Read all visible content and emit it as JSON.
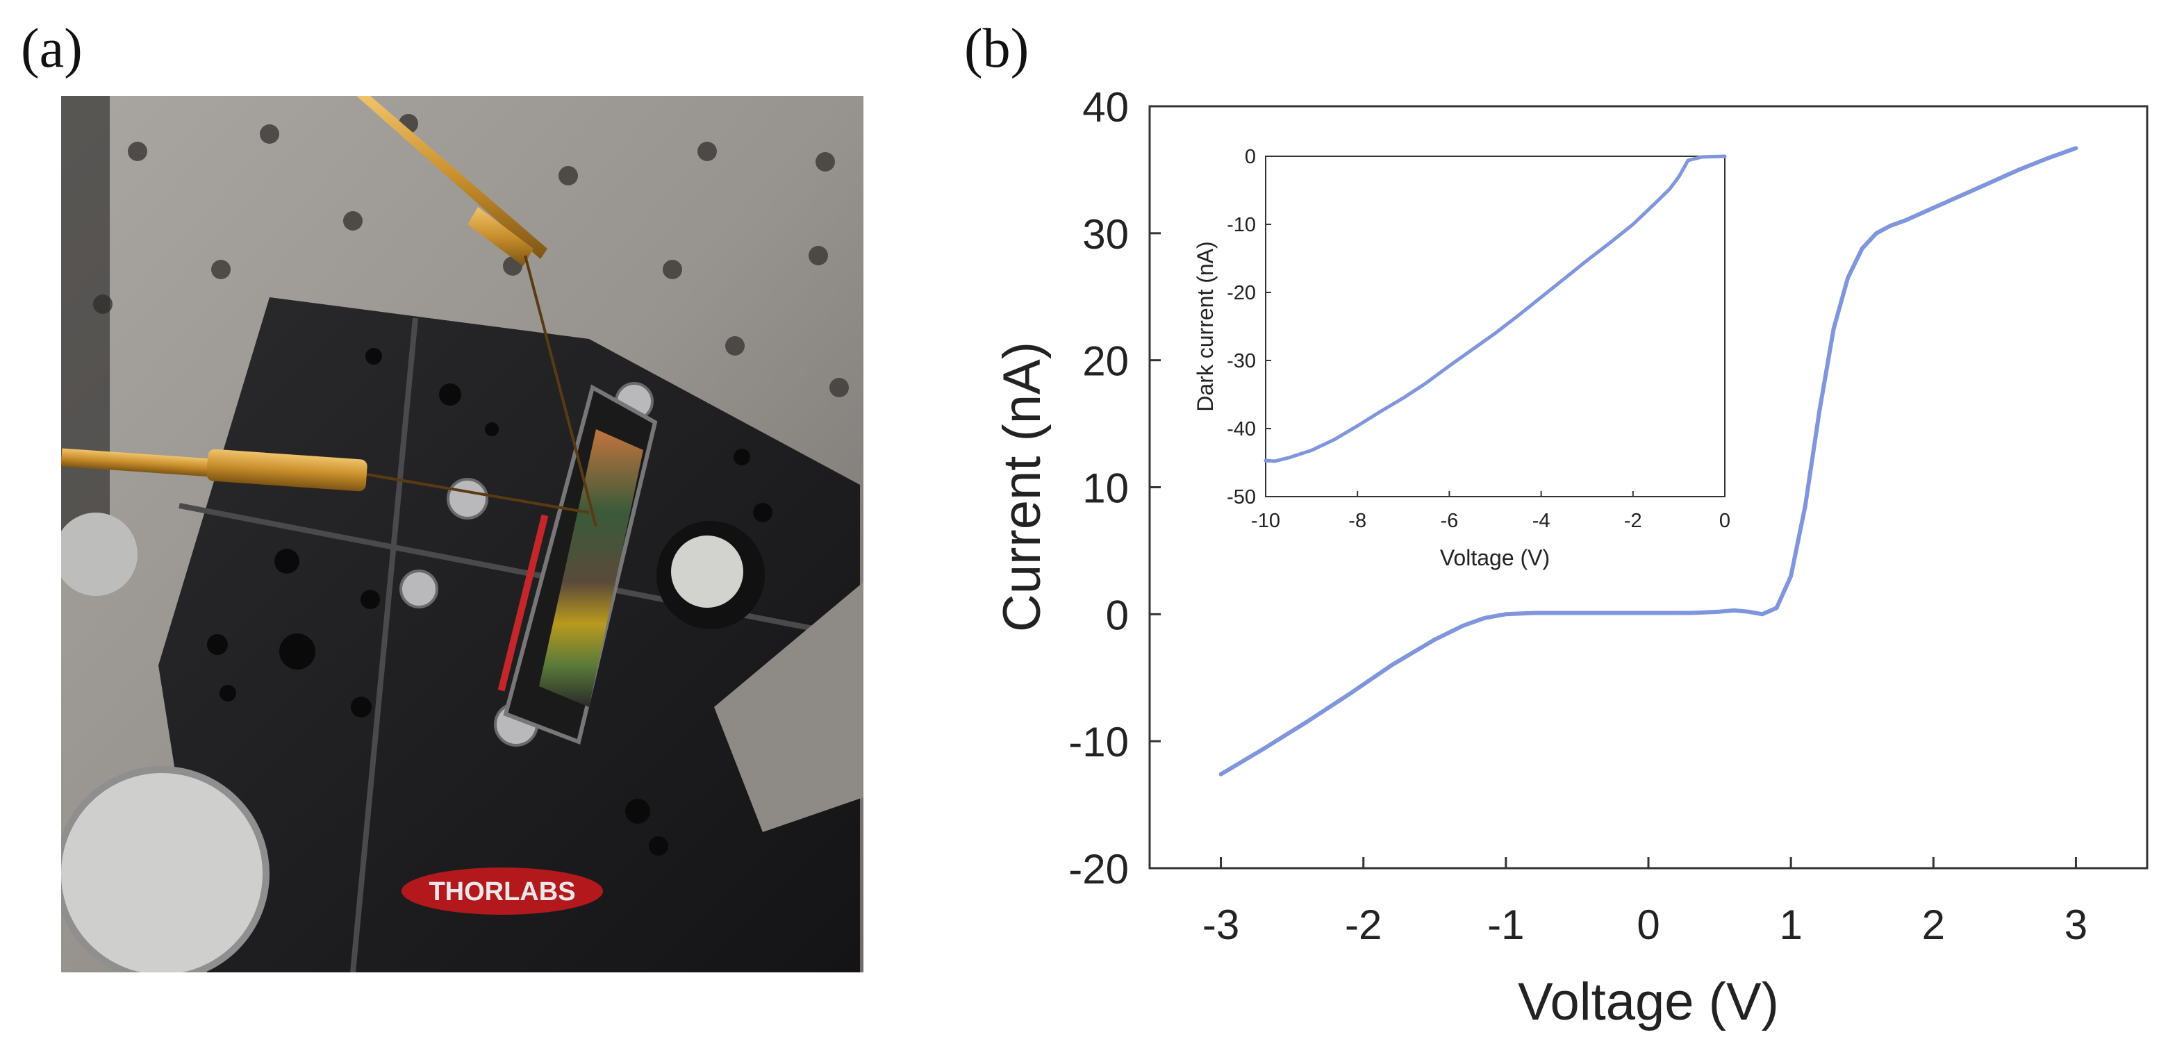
{
  "panels": {
    "a": "(a)",
    "b": "(b)"
  },
  "photo": {
    "brand_text": "THORLABS"
  },
  "colors": {
    "curve": "#7f95dd",
    "axes": "#333333",
    "background": "#ffffff"
  },
  "chart_data": [
    {
      "type": "line",
      "title": "",
      "xlabel": "Voltage (V)",
      "ylabel": "Current (nA)",
      "xlim": [
        -3.5,
        3.5
      ],
      "ylim": [
        -20,
        40
      ],
      "xticks": [
        -3,
        -2,
        -1,
        0,
        1,
        2,
        3
      ],
      "yticks": [
        -20,
        -10,
        0,
        10,
        20,
        30,
        40
      ],
      "grid": false,
      "series": [
        {
          "x": [
            -3.0,
            -2.7,
            -2.4,
            -2.1,
            -1.8,
            -1.5,
            -1.3,
            -1.15,
            -1.0,
            -0.8,
            -0.5,
            0.0,
            0.3,
            0.5,
            0.6,
            0.7,
            0.8,
            0.9,
            1.0,
            1.1,
            1.2,
            1.3,
            1.4,
            1.5,
            1.6,
            1.7,
            1.8,
            2.0,
            2.2,
            2.4,
            2.6,
            2.8,
            3.0
          ],
          "y": [
            -12.6,
            -10.6,
            -8.5,
            -6.3,
            -4.0,
            -2.0,
            -0.9,
            -0.3,
            0.0,
            0.1,
            0.1,
            0.1,
            0.1,
            0.2,
            0.3,
            0.2,
            0.0,
            0.5,
            3.0,
            8.5,
            16.0,
            22.5,
            26.5,
            28.8,
            30.0,
            30.6,
            31.0,
            32.0,
            33.0,
            34.0,
            35.0,
            35.9,
            36.7
          ]
        }
      ]
    },
    {
      "type": "line",
      "title": "",
      "xlabel": "Voltage (V)",
      "ylabel": "Dark current (nA)",
      "xlim": [
        -10,
        0
      ],
      "ylim": [
        -50,
        0
      ],
      "xticks": [
        -10,
        -8,
        -6,
        -4,
        -2,
        0
      ],
      "yticks": [
        -50,
        -40,
        -30,
        -20,
        -10,
        0
      ],
      "grid": false,
      "series": [
        {
          "x": [
            -10.0,
            -9.8,
            -9.5,
            -9.0,
            -8.5,
            -8.0,
            -7.5,
            -7.0,
            -6.5,
            -6.0,
            -5.5,
            -5.0,
            -4.5,
            -4.0,
            -3.5,
            -3.0,
            -2.5,
            -2.0,
            -1.5,
            -1.2,
            -1.0,
            -0.8,
            -0.5,
            0.0
          ],
          "y": [
            -44.7,
            -44.8,
            -44.3,
            -43.2,
            -41.6,
            -39.6,
            -37.5,
            -35.5,
            -33.3,
            -30.8,
            -28.4,
            -26.0,
            -23.4,
            -20.7,
            -18.0,
            -15.3,
            -12.7,
            -10.0,
            -6.8,
            -4.8,
            -3.0,
            -0.6,
            -0.1,
            0.0
          ]
        }
      ]
    }
  ]
}
